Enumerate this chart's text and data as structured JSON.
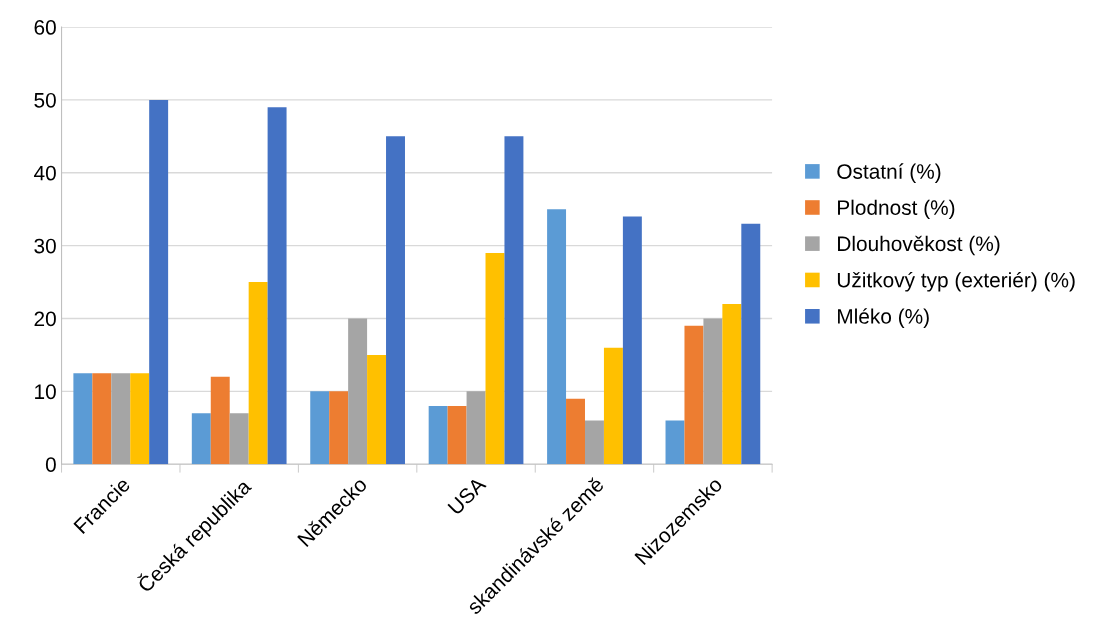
{
  "chart_data": {
    "type": "bar",
    "categories": [
      "Francie",
      "Česká republika",
      "Německo",
      "USA",
      "skandinávské země",
      "Nizozemsko"
    ],
    "series": [
      {
        "name": "Ostatní (%)",
        "color": "#5b9bd5",
        "values": [
          12.5,
          7,
          10,
          8,
          35,
          6
        ]
      },
      {
        "name": "Plodnost (%)",
        "color": "#ed7d31",
        "values": [
          12.5,
          12,
          10,
          8,
          9,
          19
        ]
      },
      {
        "name": "Dlouhověkost (%)",
        "color": "#a5a5a5",
        "values": [
          12.5,
          7,
          20,
          10,
          6,
          20
        ]
      },
      {
        "name": "Užitkový typ (exteriér) (%)",
        "color": "#ffc000",
        "values": [
          12.5,
          25,
          15,
          29,
          16,
          22
        ]
      },
      {
        "name": "Mléko (%)",
        "color": "#4472c4",
        "values": [
          50,
          49,
          45,
          45,
          34,
          33
        ]
      }
    ],
    "ylim": [
      0,
      60
    ],
    "yticks": [
      0,
      10,
      20,
      30,
      40,
      50,
      60
    ],
    "grid": "y",
    "legend": "right"
  }
}
